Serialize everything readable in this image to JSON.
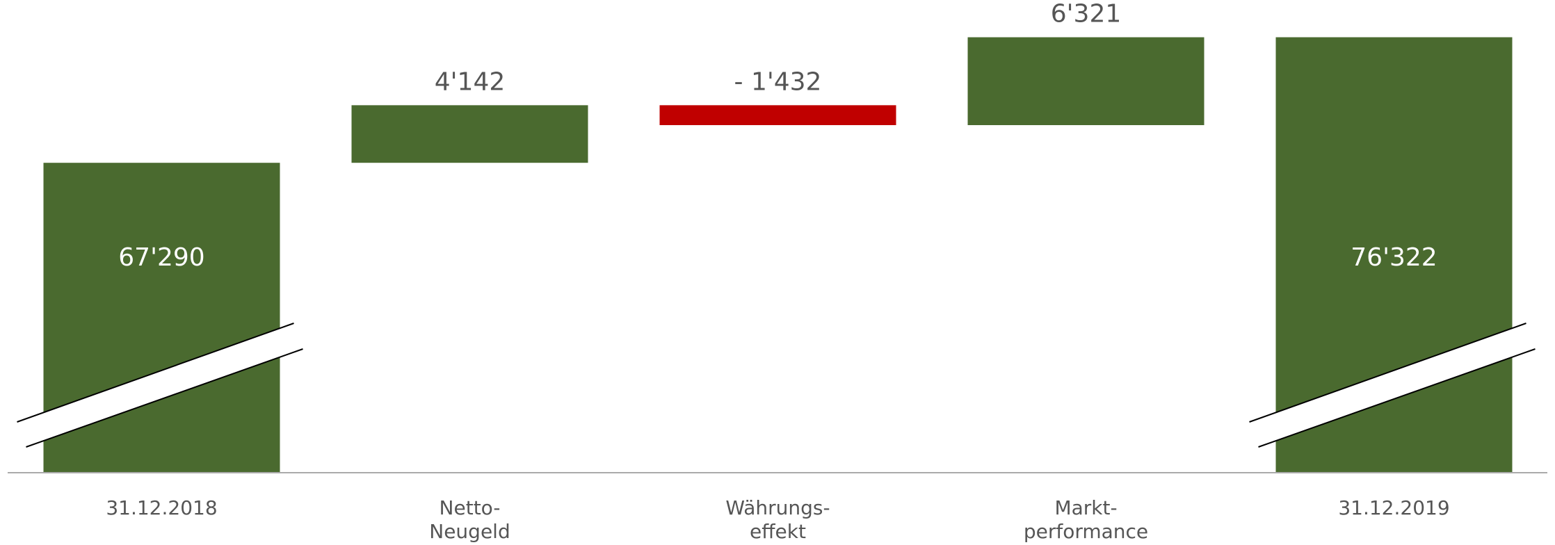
{
  "chart_data": {
    "type": "waterfall",
    "categories": [
      "31.12.2018",
      "Netto-\nNeugeld",
      "Währungs-\neffekt",
      "Markt-\nperformance",
      "31.12.2019"
    ],
    "measure": [
      "absolute",
      "relative",
      "relative",
      "relative",
      "total"
    ],
    "values": [
      67290,
      4142,
      -1432,
      6321,
      76322
    ],
    "value_labels": [
      "67'290",
      "4'142",
      "- 1'432",
      "6'321",
      "76'322"
    ],
    "colors": {
      "increase": "#4a6a2f",
      "decrease": "#c00000",
      "total": "#4a6a2f"
    },
    "ylim": [
      45000,
      79000
    ],
    "axis_break": true
  }
}
